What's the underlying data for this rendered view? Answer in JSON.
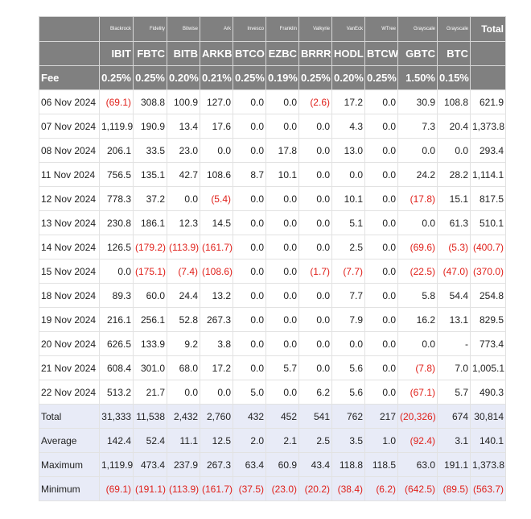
{
  "header": {
    "issuers": [
      "Blackrock",
      "Fidelity",
      "Bitwise",
      "Ark",
      "Invesco",
      "Franklin",
      "Valkyrie",
      "VanEck",
      "WTree",
      "Grayscale",
      "Grayscale",
      "Total"
    ],
    "tickers": [
      "IBIT",
      "FBTC",
      "BITB",
      "ARKB",
      "BTCO",
      "EZBC",
      "BRRR",
      "HODL",
      "BTCW",
      "GBTC",
      "BTC"
    ],
    "fee_label": "Fee",
    "fees": [
      "0.25%",
      "0.25%",
      "0.20%",
      "0.21%",
      "0.25%",
      "0.19%",
      "0.25%",
      "0.20%",
      "0.25%",
      "1.50%",
      "0.15%"
    ]
  },
  "rows": [
    [
      "06 Nov 2024",
      "(69.1)",
      "308.8",
      "100.9",
      "127.0",
      "0.0",
      "0.0",
      "(2.6)",
      "17.2",
      "0.0",
      "30.9",
      "108.8",
      "621.9"
    ],
    [
      "07 Nov 2024",
      "1,119.9",
      "190.9",
      "13.4",
      "17.6",
      "0.0",
      "0.0",
      "0.0",
      "4.3",
      "0.0",
      "7.3",
      "20.4",
      "1,373.8"
    ],
    [
      "08 Nov 2024",
      "206.1",
      "33.5",
      "23.0",
      "0.0",
      "0.0",
      "17.8",
      "0.0",
      "13.0",
      "0.0",
      "0.0",
      "0.0",
      "293.4"
    ],
    [
      "11 Nov 2024",
      "756.5",
      "135.1",
      "42.7",
      "108.6",
      "8.7",
      "10.1",
      "0.0",
      "0.0",
      "0.0",
      "24.2",
      "28.2",
      "1,114.1"
    ],
    [
      "12 Nov 2024",
      "778.3",
      "37.2",
      "0.0",
      "(5.4)",
      "0.0",
      "0.0",
      "0.0",
      "10.1",
      "0.0",
      "(17.8)",
      "15.1",
      "817.5"
    ],
    [
      "13 Nov 2024",
      "230.8",
      "186.1",
      "12.3",
      "14.5",
      "0.0",
      "0.0",
      "0.0",
      "5.1",
      "0.0",
      "0.0",
      "61.3",
      "510.1"
    ],
    [
      "14 Nov 2024",
      "126.5",
      "(179.2)",
      "(113.9)",
      "(161.7)",
      "0.0",
      "0.0",
      "0.0",
      "2.5",
      "0.0",
      "(69.6)",
      "(5.3)",
      "(400.7)"
    ],
    [
      "15 Nov 2024",
      "0.0",
      "(175.1)",
      "(7.4)",
      "(108.6)",
      "0.0",
      "0.0",
      "(1.7)",
      "(7.7)",
      "0.0",
      "(22.5)",
      "(47.0)",
      "(370.0)"
    ],
    [
      "18 Nov 2024",
      "89.3",
      "60.0",
      "24.4",
      "13.2",
      "0.0",
      "0.0",
      "0.0",
      "7.7",
      "0.0",
      "5.8",
      "54.4",
      "254.8"
    ],
    [
      "19 Nov 2024",
      "216.1",
      "256.1",
      "52.8",
      "267.3",
      "0.0",
      "0.0",
      "0.0",
      "7.9",
      "0.0",
      "16.2",
      "13.1",
      "829.5"
    ],
    [
      "20 Nov 2024",
      "626.5",
      "133.9",
      "9.2",
      "3.8",
      "0.0",
      "0.0",
      "0.0",
      "0.0",
      "0.0",
      "0.0",
      "-",
      "773.4"
    ],
    [
      "21 Nov 2024",
      "608.4",
      "301.0",
      "68.0",
      "17.2",
      "0.0",
      "5.7",
      "0.0",
      "5.6",
      "0.0",
      "(7.8)",
      "7.0",
      "1,005.1"
    ],
    [
      "22 Nov 2024",
      "513.2",
      "21.7",
      "0.0",
      "0.0",
      "5.0",
      "0.0",
      "6.2",
      "5.6",
      "0.0",
      "(67.1)",
      "5.7",
      "490.3"
    ]
  ],
  "summary": [
    [
      "Total",
      "31,333",
      "11,538",
      "2,432",
      "2,760",
      "432",
      "452",
      "541",
      "762",
      "217",
      "(20,326)",
      "674",
      "30,814"
    ],
    [
      "Average",
      "142.4",
      "52.4",
      "11.1",
      "12.5",
      "2.0",
      "2.1",
      "2.5",
      "3.5",
      "1.0",
      "(92.4)",
      "3.1",
      "140.1"
    ],
    [
      "Maximum",
      "1,119.9",
      "473.4",
      "237.9",
      "267.3",
      "63.4",
      "60.9",
      "43.4",
      "118.8",
      "118.5",
      "63.0",
      "191.1",
      "1,373.8"
    ],
    [
      "Minimum",
      "(69.1)",
      "(191.1)",
      "(113.9)",
      "(161.7)",
      "(37.5)",
      "(23.0)",
      "(20.2)",
      "(38.4)",
      "(6.2)",
      "(642.5)",
      "(89.5)",
      "(563.7)"
    ]
  ]
}
